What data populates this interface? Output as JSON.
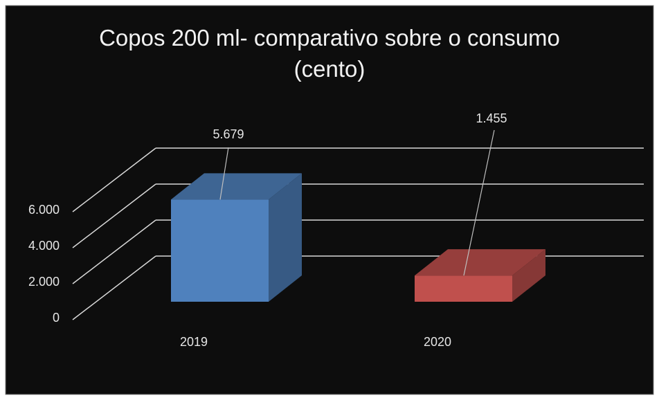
{
  "chart_data": {
    "type": "bar3d",
    "title": "Copos 200 ml- comparativo sobre o consumo (cento)",
    "categories": [
      "2019",
      "2020"
    ],
    "values": [
      5679,
      1455
    ],
    "value_labels": [
      "5.679",
      "1.455"
    ],
    "colors": [
      "#4f81bd",
      "#c0504d"
    ],
    "ylim": [
      0,
      6000
    ],
    "yticks": [
      0,
      {
        "value": 2000,
        "label": "2.000"
      },
      {
        "value": 4000,
        "label": "4.000"
      },
      {
        "value": 6000,
        "label": "6.000"
      }
    ],
    "grid": true
  }
}
